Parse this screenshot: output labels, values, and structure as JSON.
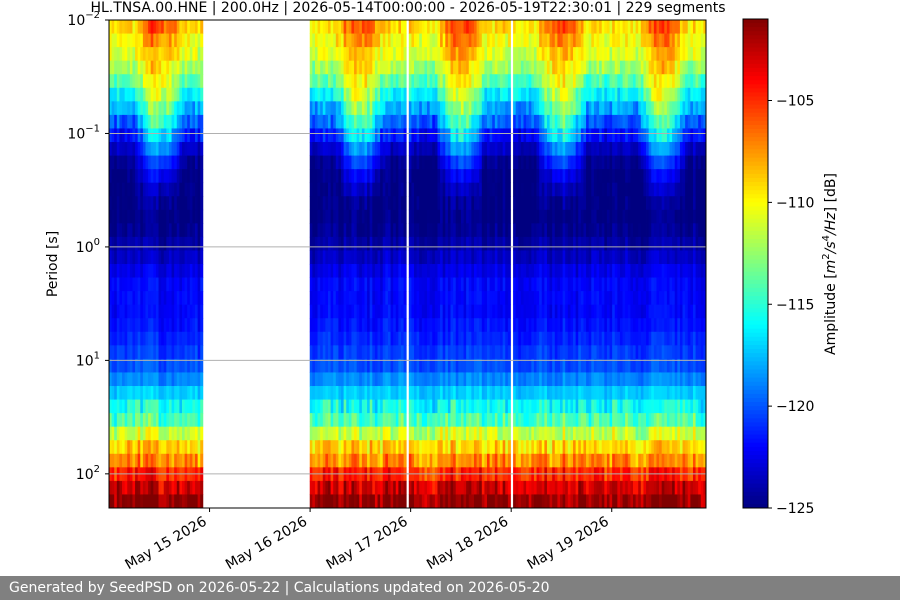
{
  "chart_data": {
    "type": "heatmap",
    "title": "HL.TNSA.00.HNE | 200.0Hz | 2026-05-14T00:00:00 - 2026-05-19T22:30:01 | 229 segments",
    "ylabel": "Period [s]",
    "yscale": "log",
    "ylim": [
      0.01,
      200
    ],
    "y_inverted": true,
    "y_ticks": [
      0.01,
      0.1,
      1,
      10,
      100
    ],
    "y_tick_labels": [
      {
        "base": "10",
        "exp": "−2"
      },
      {
        "base": "10",
        "exp": "−1"
      },
      {
        "base": "10",
        "exp": "0"
      },
      {
        "base": "10",
        "exp": "1"
      },
      {
        "base": "10",
        "exp": "2"
      }
    ],
    "x_type": "date",
    "xlim": [
      "2026-05-14T00:00:00",
      "2026-05-19T22:30:01"
    ],
    "x_tick_labels": [
      "May 15 2026",
      "May 16 2026",
      "May 17 2026",
      "May 18 2026",
      "May 19 2026"
    ],
    "x_ticks": [
      "2026-05-15",
      "2026-05-16",
      "2026-05-17",
      "2026-05-18",
      "2026-05-19"
    ],
    "grid": "horizontal",
    "data_gaps": [
      [
        "2026-05-14T22:40:00",
        "2026-05-16T00:00:00"
      ],
      [
        "2026-05-16T23:00:00",
        "2026-05-16T23:50:00"
      ],
      [
        "2026-05-17T23:55:00",
        "2026-05-18T00:30:00"
      ],
      [
        "2026-05-18T23:50:00",
        "2026-05-19T00:20:00"
      ]
    ],
    "colorbar": {
      "label": "Amplitude [m²/s⁴/Hz] [dB]",
      "label_parts": [
        "Amplitude [",
        "m",
        "2",
        "/s",
        "4",
        "/Hz",
        "] [dB]"
      ],
      "colormap": "jet",
      "range": [
        -125,
        -101
      ],
      "ticks": [
        -125,
        -120,
        -115,
        -110,
        -105
      ],
      "tick_labels": [
        "−125",
        "−120",
        "−115",
        "−110",
        "−105"
      ]
    },
    "psd_profile_db": {
      "period_s": [
        0.01,
        0.02,
        0.03,
        0.05,
        0.08,
        0.12,
        0.2,
        0.35,
        0.6,
        1,
        2,
        4,
        7,
        12,
        20,
        35,
        50,
        80,
        110,
        150,
        200
      ],
      "night_db": [
        -109,
        -111,
        -113,
        -117,
        -120,
        -123,
        -125,
        -125,
        -125,
        -124,
        -122,
        -122,
        -121,
        -120,
        -117,
        -114,
        -110,
        -107,
        -104,
        -102,
        -101
      ],
      "day_db": [
        -105,
        -108,
        -109,
        -111,
        -114,
        -117,
        -121,
        -124,
        -125,
        -124,
        -122,
        -122,
        -121,
        -120,
        -117,
        -114,
        -110,
        -107,
        -104,
        -102,
        -101
      ]
    }
  },
  "footer": {
    "text": "Generated by SeedPSD on 2026-05-22 | Calculations updated on 2026-05-20"
  }
}
